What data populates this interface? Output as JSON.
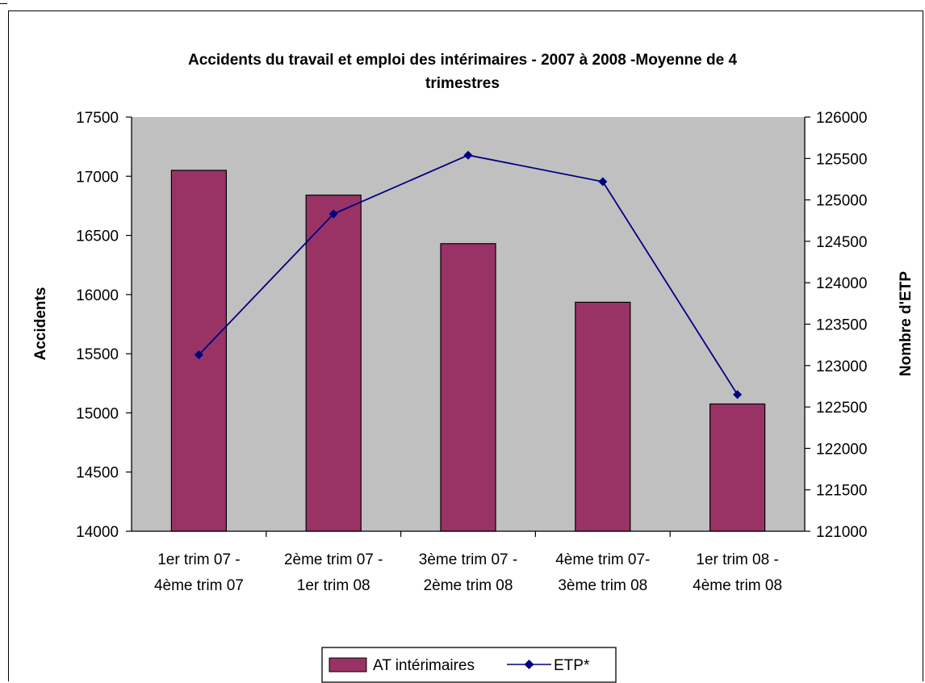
{
  "chart_data": {
    "type": "bar",
    "title": "Accidents du travail et emploi des intérimaires - 2007 à 2008 -Moyenne de 4 trimestres",
    "title_lines": [
      "Accidents du travail et emploi des intérimaires - 2007 à 2008 -Moyenne de 4",
      "trimestres"
    ],
    "categories": [
      [
        "1er trim 07 -",
        "4ème trim 07"
      ],
      [
        "2ème trim 07 -",
        "1er trim 08"
      ],
      [
        "3ème trim 07 -",
        "2ème trim 08"
      ],
      [
        "4ème trim 07-",
        "3ème trim 08"
      ],
      [
        "1er trim 08 -",
        "4ème trim 08"
      ]
    ],
    "ylabel": "Accidents",
    "y2label": "Nombre d'ETP",
    "ylim": [
      14000,
      17500
    ],
    "y2lim": [
      121000,
      126000
    ],
    "yticks": [
      "14000",
      "14500",
      "15000",
      "15500",
      "16000",
      "16500",
      "17000",
      "17500"
    ],
    "y2ticks": [
      "121000",
      "121500",
      "122000",
      "122500",
      "123000",
      "123500",
      "124000",
      "124500",
      "125000",
      "125500",
      "126000"
    ],
    "series": [
      {
        "name": "AT intérimaires",
        "type": "bar",
        "axis": "left",
        "values": [
          17050,
          16840,
          16430,
          15935,
          15075
        ],
        "color": "#993366"
      },
      {
        "name": "ETP*",
        "type": "line",
        "axis": "right",
        "values": [
          123130,
          124830,
          125540,
          125220,
          122650
        ],
        "color": "#000080"
      }
    ],
    "plot_background": "#c0c0c0",
    "grid": false,
    "legend": "bottom"
  }
}
